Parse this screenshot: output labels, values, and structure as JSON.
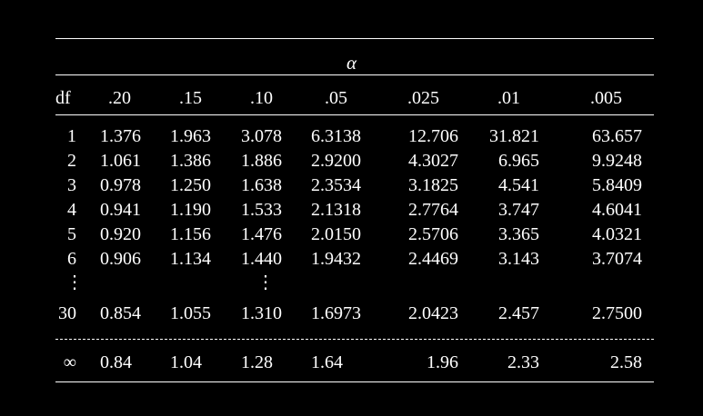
{
  "table": {
    "alpha_label": "α",
    "header": {
      "df_label": "df",
      "alphas": [
        ".20",
        ".15",
        ".10",
        ".05",
        ".025",
        ".01",
        ".005"
      ]
    },
    "rows": [
      {
        "df": "1",
        "values": [
          "1.376",
          "1.963",
          "3.078",
          "6.3138",
          "12.706",
          "31.821",
          "63.657"
        ]
      },
      {
        "df": "2",
        "values": [
          "1.061",
          "1.386",
          "1.886",
          "2.9200",
          "4.3027",
          "6.965",
          "9.9248"
        ]
      },
      {
        "df": "3",
        "values": [
          "0.978",
          "1.250",
          "1.638",
          "2.3534",
          "3.1825",
          "4.541",
          "5.8409"
        ]
      },
      {
        "df": "4",
        "values": [
          "0.941",
          "1.190",
          "1.533",
          "2.1318",
          "2.7764",
          "3.747",
          "4.6041"
        ]
      },
      {
        "df": "5",
        "values": [
          "0.920",
          "1.156",
          "1.476",
          "2.0150",
          "2.5706",
          "3.365",
          "4.0321"
        ]
      },
      {
        "df": "6",
        "values": [
          "0.906",
          "1.134",
          "1.440",
          "1.9432",
          "2.4469",
          "3.143",
          "3.7074"
        ]
      }
    ],
    "ellipsis": "⋮",
    "row30": {
      "df": "30",
      "values": [
        "0.854",
        "1.055",
        "1.310",
        "1.6973",
        "2.0423",
        "2.457",
        "2.7500"
      ]
    },
    "row_inf": {
      "df": "∞",
      "values": [
        "0.84",
        "1.04",
        "1.28",
        "1.64",
        "1.96",
        "2.33",
        "2.58"
      ]
    }
  }
}
